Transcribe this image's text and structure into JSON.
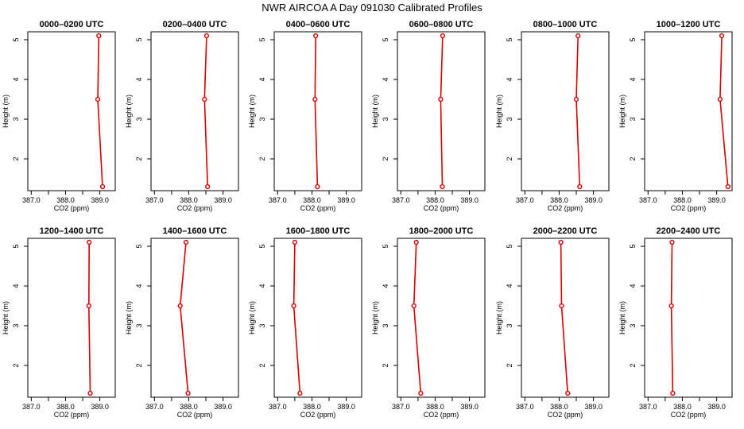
{
  "page": {
    "title": "NWR AIRCOA A  Day 091030  Calibrated Profiles"
  },
  "style": {
    "line_color": "#d40000",
    "marker_color": "#d40000",
    "frame_color": "#000000"
  },
  "chart_data": [
    {
      "type": "line",
      "title": "0000–0200 UTC",
      "xlabel": "CO2 (ppm)",
      "ylabel": "Height (m)",
      "xlim": [
        386.9,
        389.45
      ],
      "ylim": [
        1.2,
        5.2
      ],
      "grid": false,
      "legend": "none",
      "xticks": [
        "387.0",
        "388.0",
        "389.0"
      ],
      "yticks": [
        "2",
        "3",
        "4",
        "5"
      ],
      "x": [
        388.97,
        388.94,
        389.08
      ],
      "y": [
        5.1,
        3.5,
        1.3
      ]
    },
    {
      "type": "line",
      "title": "0200–0400 UTC",
      "xlabel": "CO2 (ppm)",
      "ylabel": "Height (m)",
      "xlim": [
        386.9,
        389.45
      ],
      "ylim": [
        1.2,
        5.2
      ],
      "grid": false,
      "legend": "none",
      "xticks": [
        "387.0",
        "388.0",
        "389.0"
      ],
      "yticks": [
        "2",
        "3",
        "4",
        "5"
      ],
      "x": [
        388.52,
        388.46,
        388.55
      ],
      "y": [
        5.1,
        3.5,
        1.3
      ]
    },
    {
      "type": "line",
      "title": "0400–0600 UTC",
      "xlabel": "CO2 (ppm)",
      "ylabel": "Height (m)",
      "xlim": [
        386.9,
        389.45
      ],
      "ylim": [
        1.2,
        5.2
      ],
      "grid": false,
      "legend": "none",
      "xticks": [
        "387.0",
        "388.0",
        "389.0"
      ],
      "yticks": [
        "2",
        "3",
        "4",
        "5"
      ],
      "x": [
        388.11,
        388.09,
        388.16
      ],
      "y": [
        5.1,
        3.5,
        1.3
      ]
    },
    {
      "type": "line",
      "title": "0600–0800 UTC",
      "xlabel": "CO2 (ppm)",
      "ylabel": "Height (m)",
      "xlim": [
        386.9,
        389.45
      ],
      "ylim": [
        1.2,
        5.2
      ],
      "grid": false,
      "legend": "none",
      "xticks": [
        "387.0",
        "388.0",
        "389.0"
      ],
      "yticks": [
        "2",
        "3",
        "4",
        "5"
      ],
      "x": [
        388.22,
        388.16,
        388.21
      ],
      "y": [
        5.1,
        3.5,
        1.3
      ]
    },
    {
      "type": "line",
      "title": "0800–1000 UTC",
      "xlabel": "CO2 (ppm)",
      "ylabel": "Height (m)",
      "xlim": [
        386.9,
        389.45
      ],
      "ylim": [
        1.2,
        5.2
      ],
      "grid": false,
      "legend": "none",
      "xticks": [
        "387.0",
        "388.0",
        "389.0"
      ],
      "yticks": [
        "2",
        "3",
        "4",
        "5"
      ],
      "x": [
        388.55,
        388.5,
        388.6
      ],
      "y": [
        5.1,
        3.5,
        1.3
      ]
    },
    {
      "type": "line",
      "title": "1000–1200 UTC",
      "xlabel": "CO2 (ppm)",
      "ylabel": "Height (m)",
      "xlim": [
        386.9,
        389.45
      ],
      "ylim": [
        1.2,
        5.2
      ],
      "grid": false,
      "legend": "none",
      "xticks": [
        "387.0",
        "388.0",
        "389.0"
      ],
      "yticks": [
        "2",
        "3",
        "4",
        "5"
      ],
      "x": [
        389.15,
        389.1,
        389.33
      ],
      "y": [
        5.1,
        3.5,
        1.3
      ]
    },
    {
      "type": "line",
      "title": "1200–1400 UTC",
      "xlabel": "CO2 (ppm)",
      "ylabel": "Height (m)",
      "xlim": [
        386.9,
        389.45
      ],
      "ylim": [
        1.2,
        5.2
      ],
      "grid": false,
      "legend": "none",
      "xticks": [
        "387.0",
        "388.0",
        "389.0"
      ],
      "yticks": [
        "2",
        "3",
        "4",
        "5"
      ],
      "x": [
        388.69,
        388.68,
        388.72
      ],
      "y": [
        5.1,
        3.5,
        1.3
      ]
    },
    {
      "type": "line",
      "title": "1400–1600 UTC",
      "xlabel": "CO2 (ppm)",
      "ylabel": "Height (m)",
      "xlim": [
        386.9,
        389.45
      ],
      "ylim": [
        1.2,
        5.2
      ],
      "grid": false,
      "legend": "none",
      "xticks": [
        "387.0",
        "388.0",
        "389.0"
      ],
      "yticks": [
        "2",
        "3",
        "4",
        "5"
      ],
      "x": [
        387.92,
        387.75,
        387.98
      ],
      "y": [
        5.1,
        3.5,
        1.3
      ]
    },
    {
      "type": "line",
      "title": "1600–1800 UTC",
      "xlabel": "CO2 (ppm)",
      "ylabel": "Height (m)",
      "xlim": [
        386.9,
        389.45
      ],
      "ylim": [
        1.2,
        5.2
      ],
      "grid": false,
      "legend": "none",
      "xticks": [
        "387.0",
        "388.0",
        "389.0"
      ],
      "yticks": [
        "2",
        "3",
        "4",
        "5"
      ],
      "x": [
        387.5,
        387.47,
        387.65
      ],
      "y": [
        5.1,
        3.5,
        1.3
      ]
    },
    {
      "type": "line",
      "title": "1800–2000 UTC",
      "xlabel": "CO2 (ppm)",
      "ylabel": "Height (m)",
      "xlim": [
        386.9,
        389.45
      ],
      "ylim": [
        1.2,
        5.2
      ],
      "grid": false,
      "legend": "none",
      "xticks": [
        "387.0",
        "388.0",
        "389.0"
      ],
      "yticks": [
        "2",
        "3",
        "4",
        "5"
      ],
      "x": [
        387.45,
        387.38,
        387.58
      ],
      "y": [
        5.1,
        3.5,
        1.3
      ]
    },
    {
      "type": "line",
      "title": "2000–2200 UTC",
      "xlabel": "CO2 (ppm)",
      "ylabel": "Height (m)",
      "xlim": [
        386.9,
        389.45
      ],
      "ylim": [
        1.2,
        5.2
      ],
      "grid": false,
      "legend": "none",
      "xticks": [
        "387.0",
        "388.0",
        "389.0"
      ],
      "yticks": [
        "2",
        "3",
        "4",
        "5"
      ],
      "x": [
        388.05,
        388.07,
        388.25
      ],
      "y": [
        5.1,
        3.5,
        1.3
      ]
    },
    {
      "type": "line",
      "title": "2200–2400 UTC",
      "xlabel": "CO2 (ppm)",
      "ylabel": "Height (m)",
      "xlim": [
        386.9,
        389.45
      ],
      "ylim": [
        1.2,
        5.2
      ],
      "grid": false,
      "legend": "none",
      "xticks": [
        "387.0",
        "388.0",
        "389.0"
      ],
      "yticks": [
        "2",
        "3",
        "4",
        "5"
      ],
      "x": [
        387.7,
        387.68,
        387.72
      ],
      "y": [
        5.1,
        3.5,
        1.3
      ]
    }
  ]
}
